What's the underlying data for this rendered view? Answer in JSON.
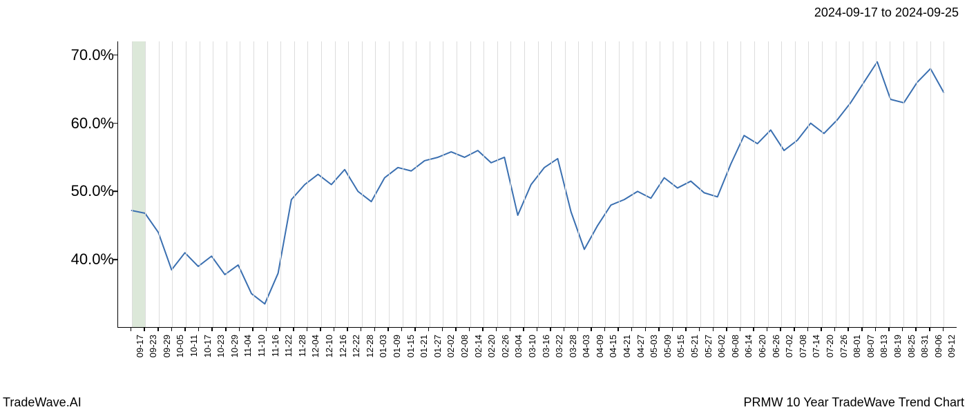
{
  "header": {
    "date_range": "2024-09-17 to 2024-09-25"
  },
  "footer": {
    "left": "TradeWave.AI",
    "right": "PRMW 10 Year TradeWave Trend Chart"
  },
  "chart": {
    "type": "line",
    "title_fontsize": 18,
    "label_fontsize": 22,
    "tick_fontsize": 13,
    "background_color": "#ffffff",
    "grid_color": "#dcdcdc",
    "axis_color": "#000000",
    "line_color": "#3a6fb0",
    "line_width": 2,
    "highlight_band": {
      "color": "#dce8d9",
      "start_index": 1,
      "end_index": 2
    },
    "xlim": [
      0,
      62
    ],
    "ylim": [
      30,
      72
    ],
    "yticks": [
      40,
      50,
      60,
      70
    ],
    "ytick_labels": [
      "40.0%",
      "50.0%",
      "60.0%",
      "70.0%"
    ],
    "xtick_labels": [
      "09-17",
      "09-23",
      "09-29",
      "10-05",
      "10-11",
      "10-17",
      "10-23",
      "10-29",
      "11-04",
      "11-10",
      "11-16",
      "11-22",
      "11-28",
      "12-04",
      "12-10",
      "12-16",
      "12-22",
      "12-28",
      "01-03",
      "01-09",
      "01-15",
      "01-21",
      "01-27",
      "02-02",
      "02-08",
      "02-14",
      "02-20",
      "02-26",
      "03-04",
      "03-10",
      "03-16",
      "03-22",
      "03-28",
      "04-03",
      "04-09",
      "04-15",
      "04-21",
      "04-27",
      "05-03",
      "05-09",
      "05-15",
      "05-21",
      "05-27",
      "06-02",
      "06-08",
      "06-14",
      "06-20",
      "06-26",
      "07-02",
      "07-08",
      "07-14",
      "07-20",
      "07-26",
      "08-01",
      "08-07",
      "08-13",
      "08-19",
      "08-25",
      "08-31",
      "09-06",
      "09-12"
    ],
    "values": [
      47.2,
      46.8,
      44.0,
      38.5,
      41.0,
      39.0,
      40.5,
      37.8,
      39.2,
      35.0,
      33.5,
      38.0,
      48.8,
      51.0,
      52.5,
      51.0,
      53.2,
      50.0,
      48.5,
      52.0,
      53.5,
      53.0,
      54.5,
      55.0,
      55.8,
      55.0,
      56.0,
      54.2,
      55.0,
      46.5,
      51.0,
      53.5,
      54.8,
      47.0,
      41.5,
      45.0,
      48.0,
      48.8,
      50.0,
      49.0,
      52.0,
      50.5,
      51.5,
      49.8,
      49.2,
      54.0,
      58.2,
      57.0,
      59.0,
      56.0,
      57.5,
      60.0,
      58.5,
      60.5,
      63.0,
      66.0,
      69.0,
      63.5,
      63.0,
      66.0,
      68.0,
      64.5
    ]
  }
}
